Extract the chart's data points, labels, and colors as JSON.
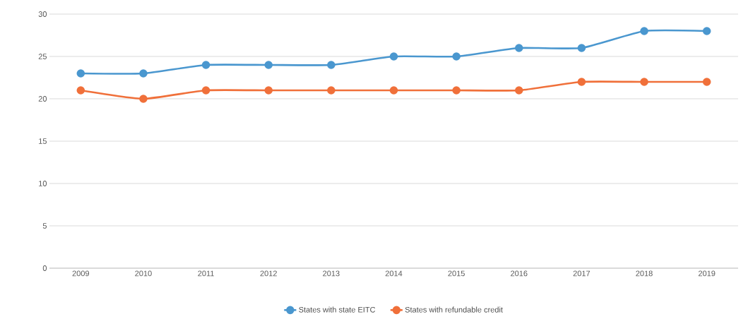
{
  "chart_data": {
    "type": "line",
    "categories": [
      "2009",
      "2010",
      "2011",
      "2012",
      "2013",
      "2014",
      "2015",
      "2016",
      "2017",
      "2018",
      "2019"
    ],
    "series": [
      {
        "name": "States with state EITC",
        "color": "#4a97cf",
        "values": [
          23,
          23,
          24,
          24,
          24,
          25,
          25,
          26,
          26,
          28,
          28
        ]
      },
      {
        "name": "States with refundable credit",
        "color": "#f0703a",
        "values": [
          21,
          20,
          21,
          21,
          21,
          21,
          21,
          21,
          22,
          22,
          22
        ]
      }
    ],
    "ylim": [
      0,
      30
    ],
    "yticks": [
      0,
      5,
      10,
      15,
      20,
      25,
      30
    ],
    "grid": "y",
    "legend": "bottom",
    "marker": "circle",
    "line_style": "solid"
  }
}
